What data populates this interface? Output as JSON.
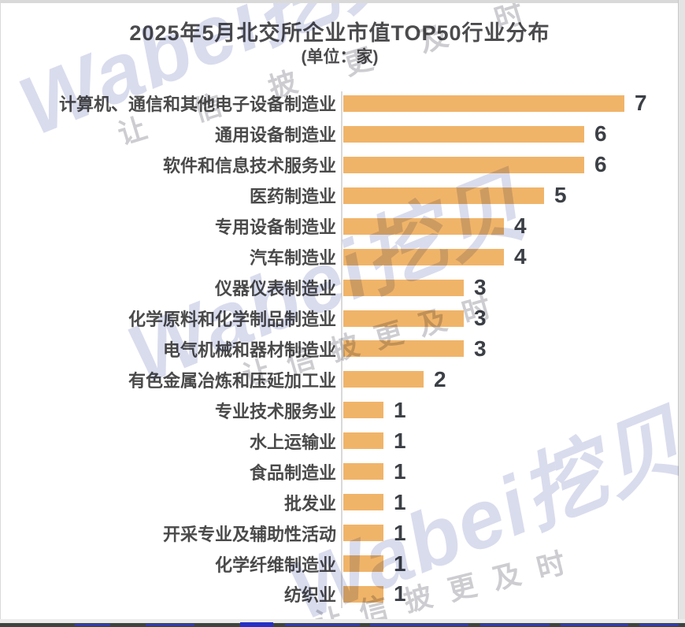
{
  "title": "2025年5月北交所企业市值TOP50行业分布",
  "subtitle": "(单位：家)",
  "watermark": {
    "brand": "Wabei挖贝",
    "slogan": "让信披更及时"
  },
  "chart_data": {
    "type": "bar",
    "orientation": "horizontal",
    "title": "2025年5月北交所企业市值TOP50行业分布",
    "subtitle": "(单位：家)",
    "unit": "家",
    "categories": [
      "计算机、通信和其他电子设备制造业",
      "通用设备制造业",
      "软件和信息技术服务业",
      "医药制造业",
      "专用设备制造业",
      "汽车制造业",
      "仪器仪表制造业",
      "化学原料和化学制品制造业",
      "电气机械和器材制造业",
      "有色金属冶炼和压延加工业",
      "专业技术服务业",
      "水上运输业",
      "食品制造业",
      "批发业",
      "开采专业及辅助性活动",
      "化学纤维制造业",
      "纺织业"
    ],
    "values": [
      7,
      6,
      6,
      5,
      4,
      4,
      3,
      3,
      3,
      2,
      1,
      1,
      1,
      1,
      1,
      1,
      1
    ],
    "xlim": [
      0,
      7
    ],
    "grid": false,
    "legend": "none",
    "value_labels_shown": true,
    "bar_color": "#F0B469",
    "axis_line_color": "#D9D9D9",
    "label_color": "#4A4A4A",
    "value_color": "#3C4046",
    "title_color": "#4B4B4E"
  }
}
